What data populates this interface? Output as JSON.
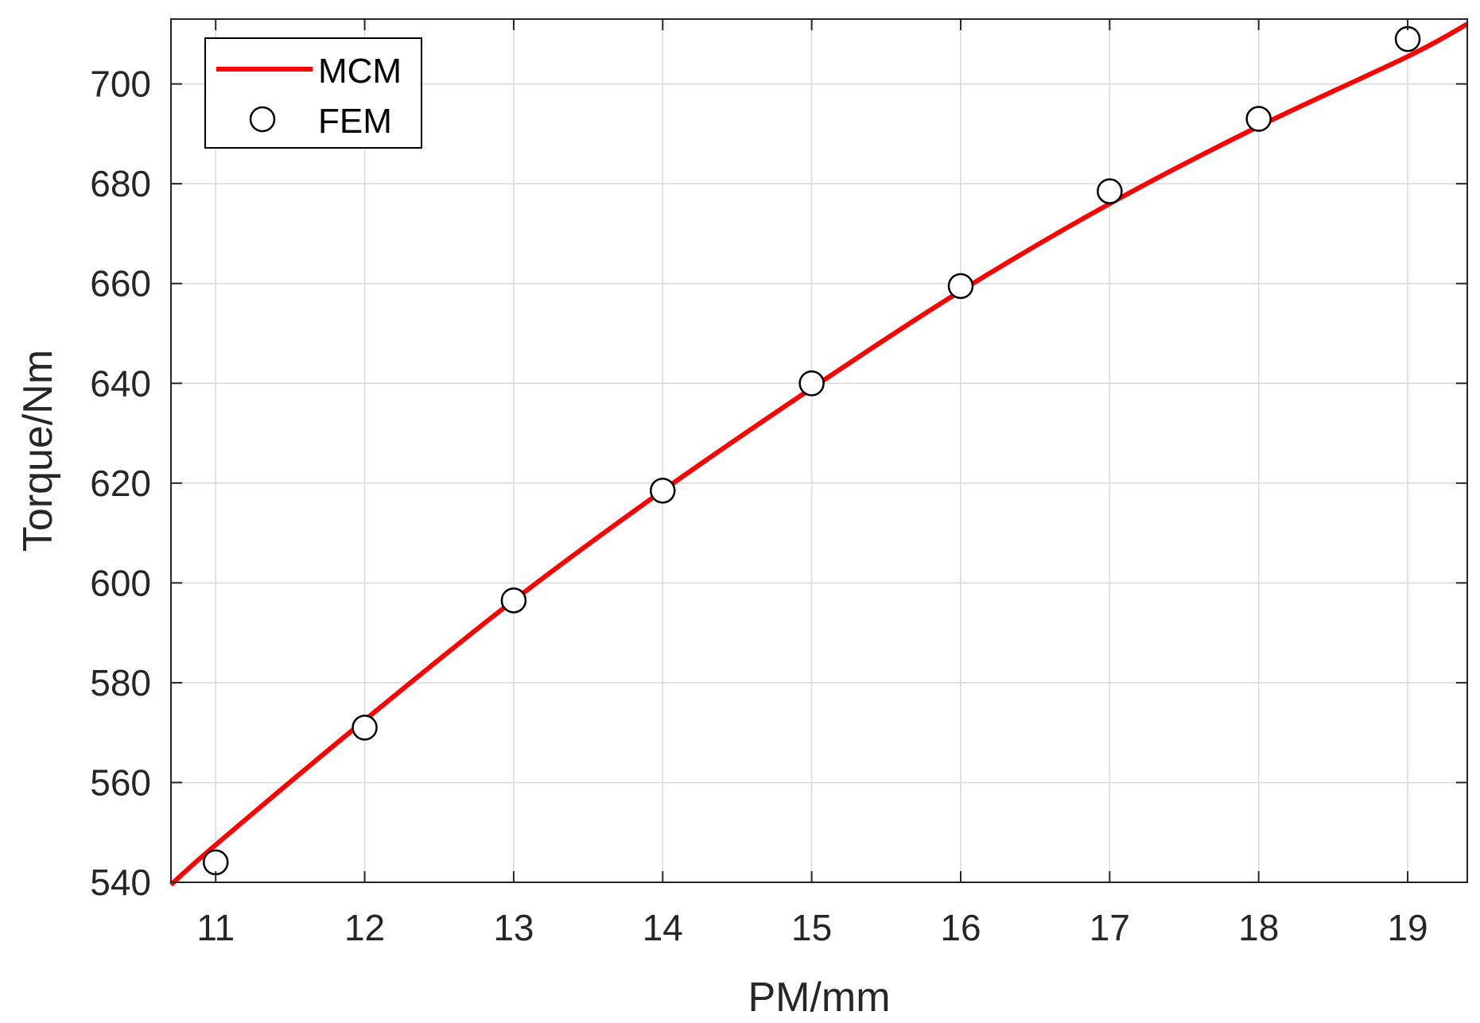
{
  "chart_data": {
    "type": "line",
    "xlabel": "PM/mm",
    "ylabel": "Torque/Nm",
    "xlim": [
      10.7,
      19.4
    ],
    "ylim": [
      540,
      713
    ],
    "grid": true,
    "legend_position": "top-left",
    "x_ticks": [
      "11",
      "12",
      "13",
      "14",
      "15",
      "16",
      "17",
      "18",
      "19"
    ],
    "y_ticks": [
      "540",
      "560",
      "580",
      "600",
      "620",
      "640",
      "660",
      "680",
      "700"
    ],
    "series": [
      {
        "name": "MCM",
        "style": "line",
        "color": "#ff0000",
        "x": [
          10.7,
          11,
          12,
          13,
          14,
          15,
          16,
          17,
          18,
          19,
          19.4
        ],
        "y": [
          539.5,
          547.5,
          572.5,
          596.5,
          618.5,
          639,
          658.5,
          676,
          691.5,
          705.5,
          712
        ]
      },
      {
        "name": "FEM",
        "style": "markers",
        "marker": "circle-open",
        "color": "#000000",
        "x": [
          11,
          12,
          13,
          14,
          15,
          16,
          17,
          18,
          19
        ],
        "y": [
          544,
          571,
          596.5,
          618.5,
          640,
          659.5,
          678.5,
          693,
          709
        ]
      }
    ]
  }
}
